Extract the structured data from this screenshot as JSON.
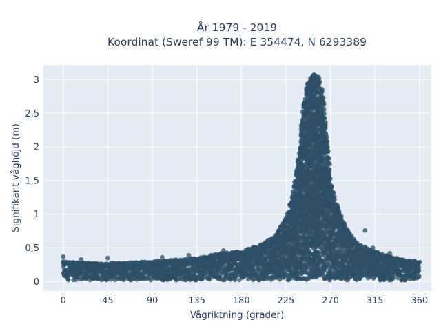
{
  "chart_data": {
    "type": "scatter",
    "title_line1": "År 1979 - 2019",
    "title_line2": "Koordinat (Sweref 99 TM): E 354474, N 6293389",
    "xlabel": "Vågriktning (grader)",
    "ylabel": "Signifikant våghöjd (m)",
    "xlim": [
      -20,
      372
    ],
    "ylim": [
      -0.14,
      3.22
    ],
    "x_ticks": [
      0,
      45,
      90,
      135,
      180,
      225,
      270,
      315,
      360
    ],
    "x_tick_labels": [
      "0",
      "45",
      "90",
      "135",
      "180",
      "225",
      "270",
      "315",
      "360"
    ],
    "y_ticks": [
      0,
      0.5,
      1,
      1.5,
      2,
      2.5,
      3
    ],
    "y_tick_labels": [
      "0",
      "0,5",
      "1",
      "1,5",
      "2",
      "2,5",
      "3"
    ],
    "grid": true,
    "marker_color": "#2e5068",
    "plot_background": "#e5ecf6",
    "envelope": {
      "x": [
        0,
        20,
        45,
        90,
        135,
        160,
        180,
        200,
        215,
        225,
        232,
        238,
        242,
        246,
        250,
        254,
        258,
        262,
        266,
        270,
        275,
        280,
        290,
        300,
        315,
        330,
        345,
        360
      ],
      "y_max": [
        0.3,
        0.28,
        0.27,
        0.3,
        0.35,
        0.42,
        0.45,
        0.55,
        0.7,
        0.95,
        1.3,
        1.9,
        2.5,
        2.9,
        3.05,
        3.1,
        3.05,
        2.85,
        2.2,
        1.55,
        1.2,
        1.0,
        0.7,
        0.55,
        0.45,
        0.38,
        0.32,
        0.3
      ],
      "y_min": [
        0.02,
        0.02,
        0.02,
        0.02,
        0.02,
        0.02,
        0.02,
        0.02,
        0.02,
        0.02,
        0.02,
        0.02,
        0.02,
        0.02,
        0.02,
        0.02,
        0.02,
        0.02,
        0.02,
        0.02,
        0.02,
        0.02,
        0.02,
        0.02,
        0.02,
        0.02,
        0.02,
        0.02
      ]
    },
    "outliers": [
      {
        "x": 0,
        "y": 0.37
      },
      {
        "x": 18,
        "y": 0.33
      },
      {
        "x": 45,
        "y": 0.35
      },
      {
        "x": 100,
        "y": 0.36
      },
      {
        "x": 127,
        "y": 0.39
      },
      {
        "x": 162,
        "y": 0.46
      },
      {
        "x": 305,
        "y": 0.76
      },
      {
        "x": 313,
        "y": 0.5
      },
      {
        "x": 330,
        "y": 0.42
      }
    ]
  }
}
